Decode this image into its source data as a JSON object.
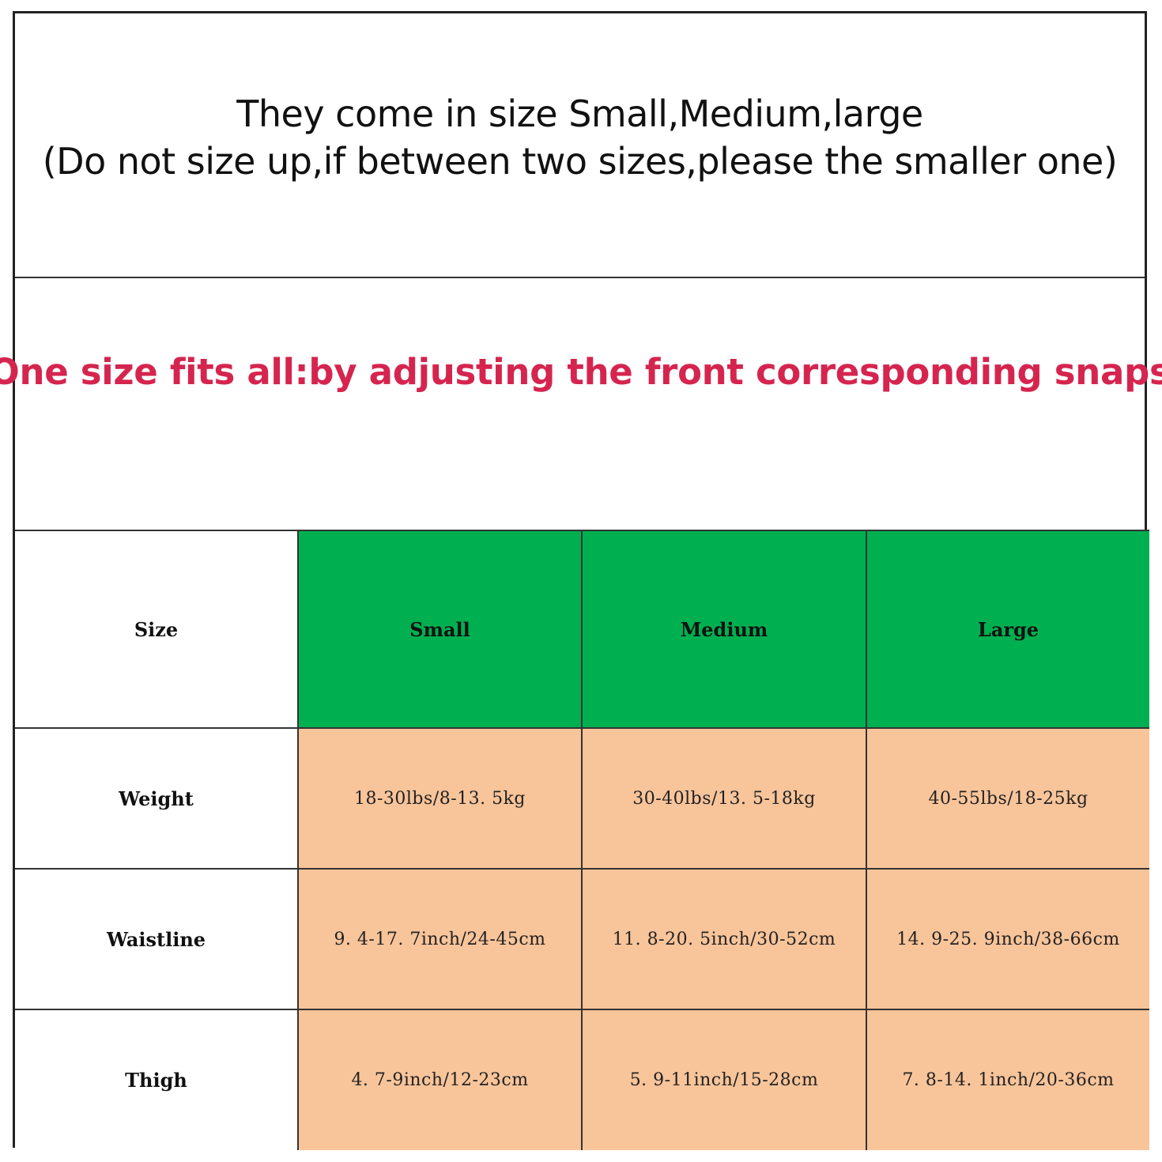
{
  "intro": {
    "line1": "They come in size Small,Medium,large",
    "line2": "(Do not size up,if between two sizes,please the smaller one)"
  },
  "banner": {
    "text": "One size fits all:by adjusting the front corresponding snaps",
    "color": "#d5254f"
  },
  "table": {
    "header": {
      "label": "Size",
      "columns": [
        "Small",
        "Medium",
        "Large"
      ],
      "color": "#00b050"
    },
    "rows": [
      {
        "label": "Weight",
        "values": [
          "18-30lbs/8-13. 5kg",
          "30-40lbs/13. 5-18kg",
          "40-55lbs/18-25kg"
        ]
      },
      {
        "label": "Waistline",
        "values": [
          "9. 4-17. 7inch/24-45cm",
          "11. 8-20. 5inch/30-52cm",
          "14. 9-25. 9inch/38-66cm"
        ]
      },
      {
        "label": "Thigh",
        "values": [
          "4. 7-9inch/12-23cm",
          "5. 9-11inch/15-28cm",
          "7. 8-14. 1inch/20-36cm"
        ]
      }
    ],
    "cell_color": "#f8c49a"
  }
}
